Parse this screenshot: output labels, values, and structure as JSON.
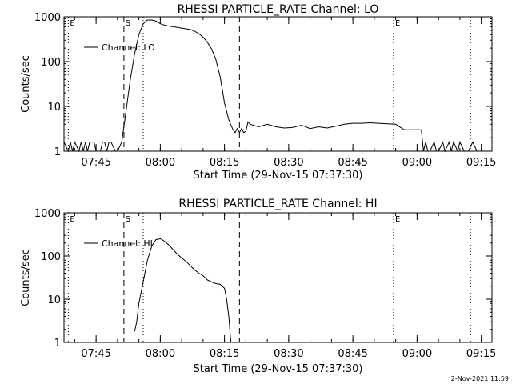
{
  "footer_date": "2-Nov-2021 11:59",
  "chart_data": [
    {
      "type": "line",
      "title": "RHESSI PARTICLE_RATE Channel: LO",
      "xlabel": "Start Time (29-Nov-15 07:37:30)",
      "ylabel": "Counts/sec",
      "yscale": "log",
      "xlim": [
        "07:37:30",
        "09:17:30"
      ],
      "ylim": [
        1,
        1000
      ],
      "x_ticks": [
        "07:45",
        "08:00",
        "08:15",
        "08:30",
        "08:45",
        "09:00",
        "09:15"
      ],
      "y_ticks": [
        "1",
        "10",
        "100",
        "1000"
      ],
      "legend": "top-left",
      "markers": [
        {
          "label": "E",
          "time": "07:38:30",
          "style": "dotted"
        },
        {
          "label": "S",
          "time": "07:51:30",
          "style": "dashed"
        },
        {
          "label": "",
          "time": "07:56:00",
          "style": "dotted"
        },
        {
          "label": "",
          "time": "08:18:30",
          "style": "dashed"
        },
        {
          "label": "E",
          "time": "08:54:30",
          "style": "dotted"
        },
        {
          "label": "",
          "time": "09:12:30",
          "style": "dotted"
        }
      ],
      "series": [
        {
          "name": "Channel: LO",
          "x": [
            "07:37:30",
            "07:38:30",
            "07:39:00",
            "07:39:30",
            "07:40:00",
            "07:41:00",
            "07:41:30",
            "07:42:00",
            "07:42:30",
            "07:43:00",
            "07:43:30",
            "07:44:30",
            "07:45:00",
            "07:46:00",
            "07:46:30",
            "07:47:00",
            "07:47:30",
            "07:48:00",
            "07:48:30",
            "07:49:30",
            "07:50:00",
            "07:51:00",
            "07:52:00",
            "07:53:00",
            "07:54:00",
            "07:55:00",
            "07:56:00",
            "07:57:00",
            "07:58:00",
            "07:59:00",
            "08:00:00",
            "08:01:00",
            "08:02:00",
            "08:03:00",
            "08:04:00",
            "08:05:00",
            "08:06:00",
            "08:07:00",
            "08:08:00",
            "08:09:00",
            "08:10:00",
            "08:11:00",
            "08:12:00",
            "08:13:00",
            "08:14:00",
            "08:15:00",
            "08:16:00",
            "08:17:00",
            "08:17:30",
            "08:18:00",
            "08:18:30",
            "08:19:00",
            "08:19:30",
            "08:20:00",
            "08:20:30",
            "08:21:00",
            "08:23:00",
            "08:25:00",
            "08:27:00",
            "08:29:00",
            "08:31:00",
            "08:33:00",
            "08:35:00",
            "08:37:00",
            "08:39:00",
            "08:41:00",
            "08:43:00",
            "08:45:00",
            "08:47:00",
            "08:49:00",
            "08:51:00",
            "08:53:00",
            "08:55:00",
            "08:57:00",
            "08:59:00",
            "09:01:00",
            "09:01:30",
            "09:02:00",
            "09:02:30",
            "09:03:00",
            "09:04:00",
            "09:04:30",
            "09:05:00",
            "09:06:00",
            "09:06:30",
            "09:07:30",
            "09:08:00",
            "09:08:30",
            "09:09:30",
            "09:10:00",
            "09:11:00",
            "09:12:00",
            "09:13:00",
            "09:14:00",
            "09:15:00",
            "09:17:30"
          ],
          "y": [
            1.6,
            1,
            1.6,
            1,
            1.6,
            1,
            1.6,
            1,
            1.6,
            1,
            1.6,
            1.6,
            1,
            1,
            1.6,
            1.6,
            1,
            1.6,
            1.6,
            1,
            1,
            1.6,
            8,
            40,
            150,
            400,
            700,
            850,
            850,
            800,
            700,
            650,
            620,
            600,
            580,
            560,
            540,
            520,
            480,
            420,
            350,
            270,
            190,
            110,
            45,
            12,
            5,
            3,
            2.6,
            3.2,
            2.6,
            3.2,
            2.6,
            2.8,
            4.5,
            4,
            3.5,
            4,
            3.5,
            3.3,
            3.4,
            3.8,
            3.2,
            3.5,
            3.3,
            3.6,
            4,
            4.2,
            4.2,
            4.3,
            4.2,
            4.1,
            4,
            3,
            3,
            3,
            1,
            1.6,
            1,
            1,
            1.6,
            1,
            1,
            1.6,
            1,
            1.6,
            1,
            1.6,
            1,
            1.6,
            1,
            1,
            1.6,
            1,
            1,
            1
          ]
        }
      ]
    },
    {
      "type": "line",
      "title": "RHESSI PARTICLE_RATE Channel: HI",
      "xlabel": "Start Time (29-Nov-15 07:37:30)",
      "ylabel": "Counts/sec",
      "yscale": "log",
      "xlim": [
        "07:37:30",
        "09:17:30"
      ],
      "ylim": [
        1,
        1000
      ],
      "x_ticks": [
        "07:45",
        "08:00",
        "08:15",
        "08:30",
        "08:45",
        "09:00",
        "09:15"
      ],
      "y_ticks": [
        "1",
        "10",
        "100",
        "1000"
      ],
      "legend": "top-left",
      "markers": [
        {
          "label": "E",
          "time": "07:38:30",
          "style": "dotted"
        },
        {
          "label": "S",
          "time": "07:51:30",
          "style": "dashed"
        },
        {
          "label": "",
          "time": "07:56:00",
          "style": "dotted"
        },
        {
          "label": "",
          "time": "08:18:30",
          "style": "dashed"
        },
        {
          "label": "E",
          "time": "08:54:30",
          "style": "dotted"
        },
        {
          "label": "",
          "time": "09:12:30",
          "style": "dotted"
        }
      ],
      "series": [
        {
          "name": "Channel: HI",
          "x": [
            "07:54:00",
            "07:54:30",
            "07:55:00",
            "07:56:00",
            "07:57:00",
            "07:58:00",
            "07:59:00",
            "08:00:00",
            "08:01:00",
            "08:02:00",
            "08:03:00",
            "08:04:00",
            "08:05:00",
            "08:06:00",
            "08:07:00",
            "08:08:00",
            "08:09:00",
            "08:10:00",
            "08:11:00",
            "08:12:00",
            "08:13:00",
            "08:14:00",
            "08:15:00",
            "08:15:30",
            "08:16:00",
            "08:16:30"
          ],
          "y": [
            1.8,
            3,
            8,
            25,
            80,
            170,
            240,
            250,
            220,
            180,
            140,
            110,
            90,
            75,
            60,
            48,
            40,
            35,
            28,
            25,
            23,
            22,
            18,
            10,
            4,
            1
          ]
        }
      ]
    }
  ]
}
